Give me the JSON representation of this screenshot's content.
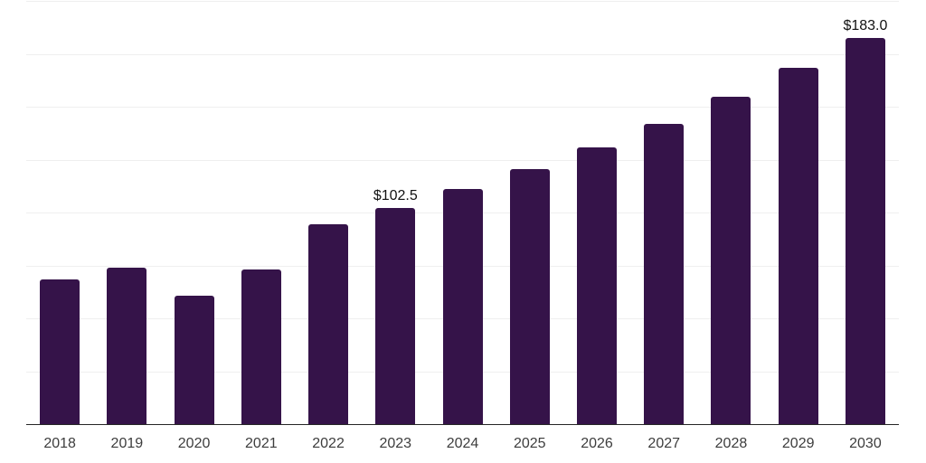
{
  "chart_data": {
    "type": "bar",
    "title": "",
    "xlabel": "",
    "ylabel": "",
    "categories": [
      "2018",
      "2019",
      "2020",
      "2021",
      "2022",
      "2023",
      "2024",
      "2025",
      "2026",
      "2027",
      "2028",
      "2029",
      "2030"
    ],
    "values": [
      68.7,
      74.3,
      61.0,
      73.4,
      94.7,
      102.5,
      111.5,
      121.0,
      131.3,
      142.5,
      155.0,
      168.7,
      183.0
    ],
    "data_labels": [
      {
        "category": "2023",
        "text": "$102.5"
      },
      {
        "category": "2030",
        "text": "$183.0"
      }
    ],
    "ylim": [
      0,
      200
    ],
    "gridline_step": 25,
    "grid": true,
    "y_tick_labels_visible": false,
    "legend": "none",
    "colors": {
      "bar": "#351349",
      "gridline": "#efefef",
      "axis_line": "#262626",
      "tick_label": "#3d3d3d",
      "data_label": "#111111",
      "background": "#ffffff"
    }
  }
}
